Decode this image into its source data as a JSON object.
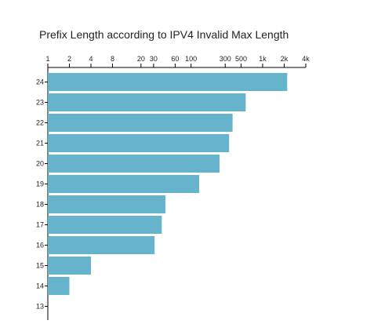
{
  "chart_data": {
    "type": "bar",
    "orientation": "horizontal",
    "title": "Prefix Length according to IPV4 Invalid Max Length",
    "xlabel": "",
    "ylabel": "",
    "x_scale": "log",
    "x_axis_position": "top",
    "xlim": [
      1,
      4000
    ],
    "x_ticks": [
      1,
      2,
      4,
      8,
      20,
      30,
      60,
      100,
      300,
      500,
      1000,
      2000,
      4000
    ],
    "x_tick_labels": [
      "1",
      "2",
      "4",
      "8",
      "20",
      "30",
      "60",
      "100",
      "300",
      "500",
      "1k",
      "2k",
      "4k"
    ],
    "grid": false,
    "legend": "none",
    "bar_color": "#66b3cc",
    "categories": [
      "24",
      "23",
      "22",
      "21",
      "20",
      "19",
      "18",
      "17",
      "16",
      "15",
      "14",
      "13"
    ],
    "values": [
      2200,
      580,
      380,
      340,
      250,
      130,
      44,
      39,
      31,
      4,
      2,
      1
    ]
  }
}
